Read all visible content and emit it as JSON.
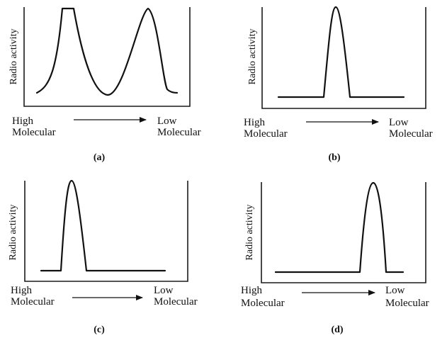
{
  "panels": [
    {
      "caption": "(a)",
      "y_label": "Radio activity",
      "x_left": [
        "High",
        "Molecular"
      ],
      "x_right": [
        "Low",
        "Molecular"
      ]
    },
    {
      "caption": "(b)",
      "y_label": "Radio activity",
      "x_left": [
        "High",
        "Molecular"
      ],
      "x_right": [
        "Low",
        "Molecular"
      ]
    },
    {
      "caption": "(c)",
      "y_label": "Radio activity",
      "x_left": [
        "High",
        "Molecular"
      ],
      "x_right": [
        "Low",
        "Molecular"
      ]
    },
    {
      "caption": "(d)",
      "y_label": "Radio activity",
      "x_left": [
        "High",
        "Molecular"
      ],
      "x_right": [
        "Low",
        "Molecular"
      ]
    }
  ],
  "colors": {
    "ink": "#111111",
    "background": "#ffffff"
  }
}
